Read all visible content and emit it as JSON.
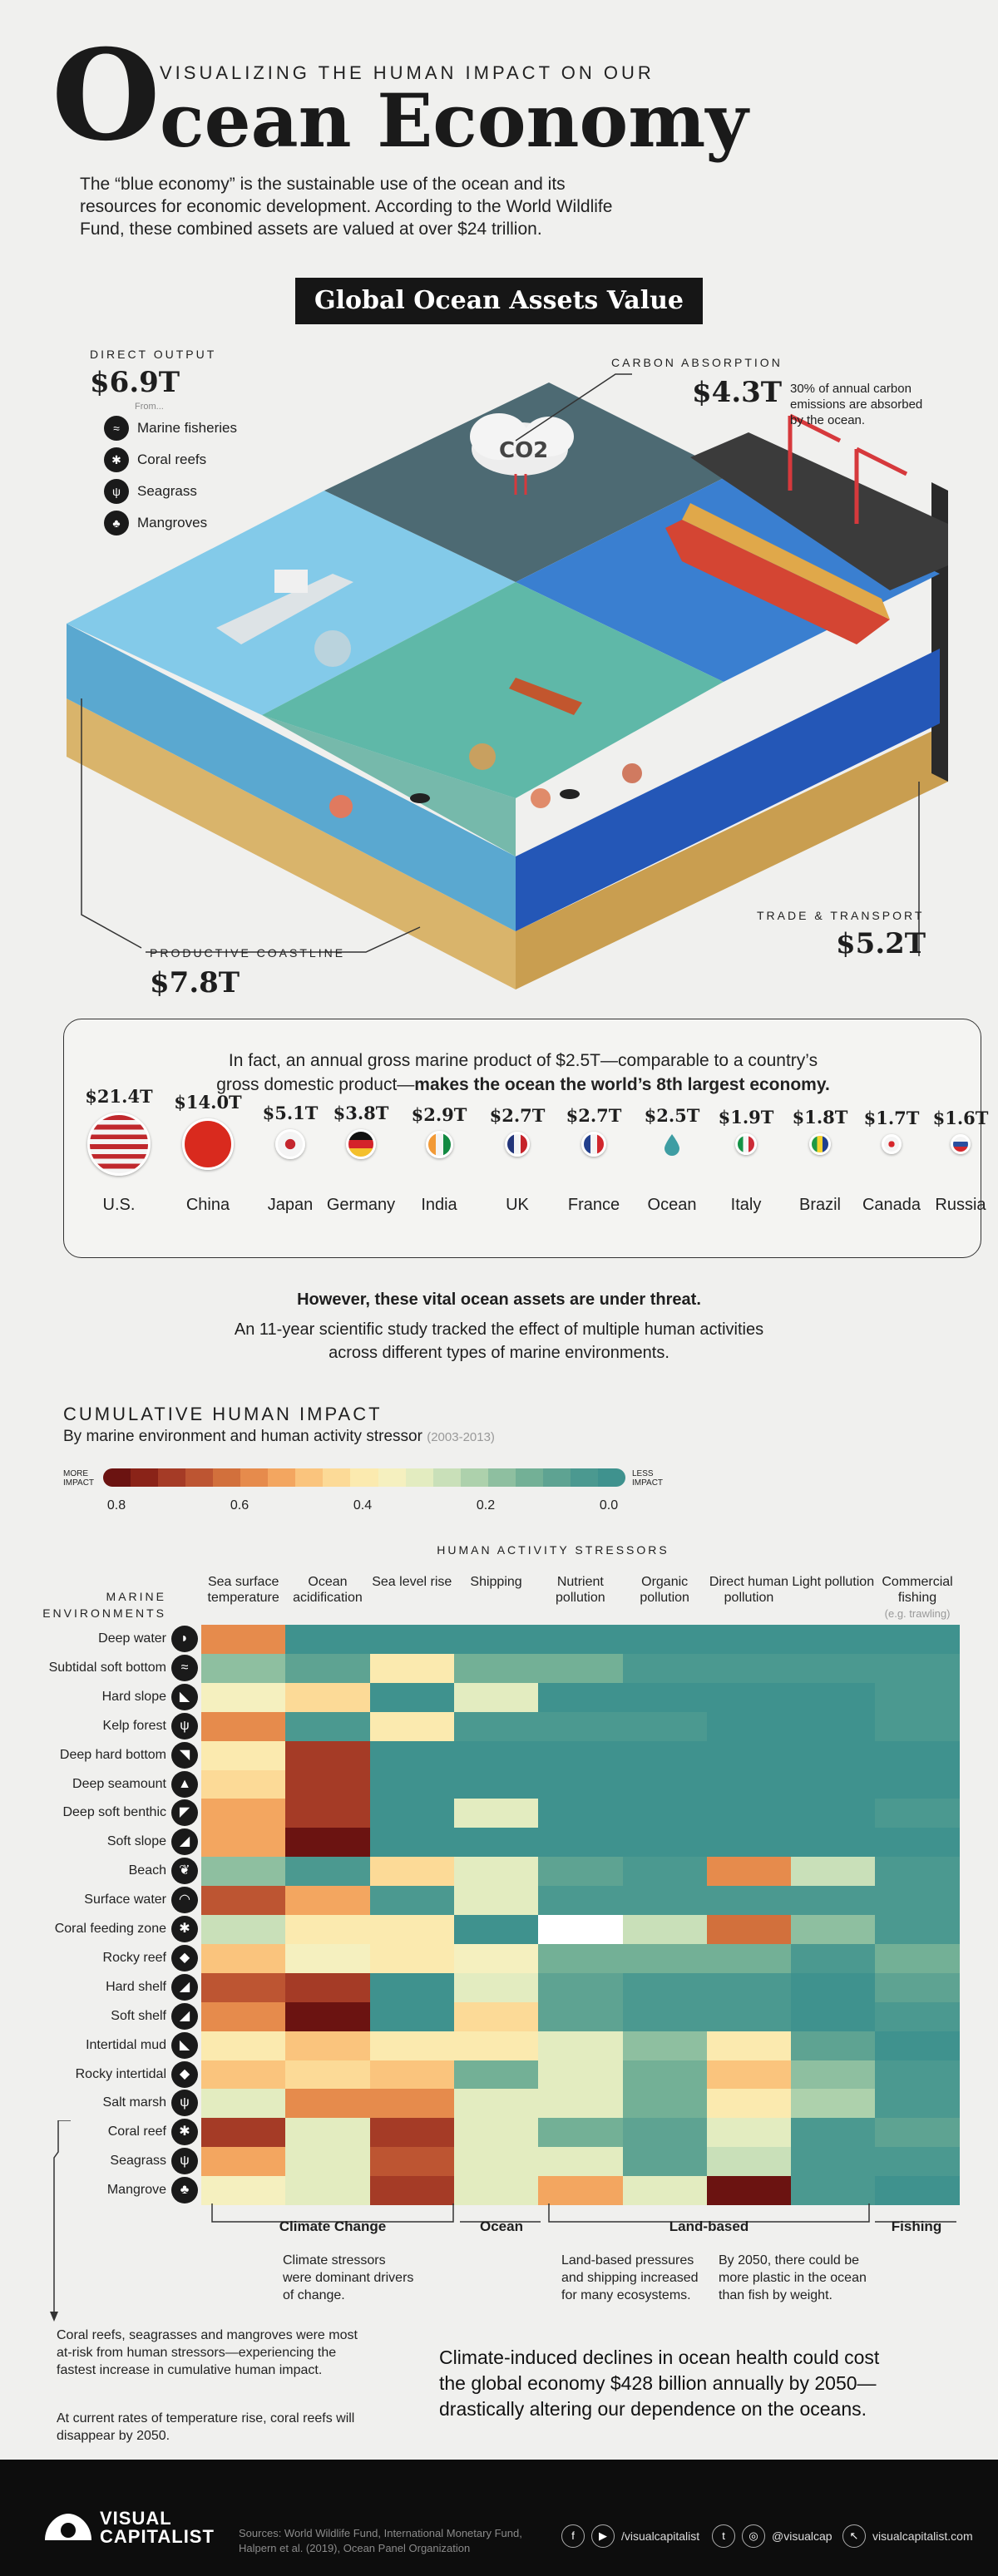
{
  "header": {
    "big_o": "O",
    "kicker": "VISUALIZING THE HUMAN IMPACT ON OUR",
    "title": "cean Economy",
    "intro": "The “blue economy” is the sustainable use of the ocean and its resources for economic development. According to the World Wildlife Fund, these combined assets are valued at over $24 trillion."
  },
  "assets": {
    "banner": "Global Ocean Assets Value",
    "direct_output": {
      "label": "DIRECT OUTPUT",
      "value": "$6.9T",
      "from": "From...",
      "items": [
        "Marine fisheries",
        "Coral reefs",
        "Seagrass",
        "Mangroves"
      ]
    },
    "carbon": {
      "label": "CARBON ABSORPTION",
      "value": "$4.3T",
      "note": "30% of annual carbon emissions are absorbed by the ocean.",
      "cloud_text": "CO2"
    },
    "coastline": {
      "label": "PRODUCTIVE COASTLINE",
      "value": "$7.8T"
    },
    "trade": {
      "label": "TRADE & TRANSPORT",
      "value": "$5.2T"
    },
    "colors": {
      "sea_light": "#7cc7e8",
      "sea_mid": "#3a8fc4",
      "sea_deep": "#2457b7",
      "sea_green": "#5fb8a8",
      "sand": "#d9b46b",
      "dark_water": "#4d6a73"
    }
  },
  "gdp": {
    "line1": "In fact, an annual gross marine product of $2.5T—comparable to a country’s",
    "line2_plain": "gross domestic product—",
    "line2_bold": "makes the ocean the world’s 8th largest economy.",
    "countries": [
      {
        "name": "U.S.",
        "value": "$21.4T"
      },
      {
        "name": "China",
        "value": "$14.0T"
      },
      {
        "name": "Japan",
        "value": "$5.1T"
      },
      {
        "name": "Germany",
        "value": "$3.8T"
      },
      {
        "name": "India",
        "value": "$2.9T"
      },
      {
        "name": "UK",
        "value": "$2.7T"
      },
      {
        "name": "France",
        "value": "$2.7T"
      },
      {
        "name": "Ocean",
        "value": "$2.5T"
      },
      {
        "name": "Italy",
        "value": "$1.9T"
      },
      {
        "name": "Brazil",
        "value": "$1.8T"
      },
      {
        "name": "Canada",
        "value": "$1.7T"
      },
      {
        "name": "Russia",
        "value": "$1.6T"
      }
    ]
  },
  "threat": {
    "title": "However, these vital ocean assets are under threat.",
    "sub": "An 11-year scientific study tracked the effect of multiple human activities across different types of marine environments."
  },
  "impact": {
    "title": "CUMULATIVE HUMAN IMPACT",
    "subtitle": "By marine environment and human activity stressor",
    "years": "(2003-2013)",
    "legend": {
      "more": "MORE IMPACT",
      "less": "LESS IMPACT",
      "ticks": [
        "0.8",
        "0.6",
        "0.4",
        "0.2",
        "0.0"
      ],
      "colors": [
        "#6b1311",
        "#8a2318",
        "#a53b26",
        "#bd5532",
        "#d2703c",
        "#e68b4c",
        "#f3a660",
        "#fac47d",
        "#fcda97",
        "#fbeaaf",
        "#f5f0bf",
        "#e3ecc0",
        "#c9e0b9",
        "#add1ac",
        "#8ebfa0",
        "#73b096",
        "#5ea392",
        "#4b9990",
        "#3f928e"
      ]
    }
  },
  "chart_data": {
    "type": "heatmap",
    "title": "CUMULATIVE HUMAN IMPACT",
    "subtitle": "By marine environment and human activity stressor",
    "xlabel": "HUMAN ACTIVITY STRESSORS",
    "ylabel": "MARINE ENVIRONMENTS",
    "columns": [
      {
        "label": "Sea surface temperature",
        "sub": ""
      },
      {
        "label": "Ocean acidification",
        "sub": ""
      },
      {
        "label": "Sea level rise",
        "sub": ""
      },
      {
        "label": "Shipping",
        "sub": ""
      },
      {
        "label": "Nutrient pollution",
        "sub": ""
      },
      {
        "label": "Organic pollution",
        "sub": ""
      },
      {
        "label": "Direct human pollution",
        "sub": ""
      },
      {
        "label": "Light pollution",
        "sub": ""
      },
      {
        "label": "Commercial fishing",
        "sub": "(e.g. trawling)"
      }
    ],
    "rows": [
      {
        "name": "Deep water",
        "icon": "deep-water-icon",
        "values": [
          0.6,
          0.02,
          0.02,
          0.02,
          0.02,
          0.02,
          0.02,
          0.02,
          0.02
        ]
      },
      {
        "name": "Subtidal soft bottom",
        "icon": "subtidal-soft-bottom-icon",
        "values": [
          0.18,
          0.1,
          0.4,
          0.12,
          0.14,
          0.04,
          0.03,
          0.04,
          0.04
        ]
      },
      {
        "name": "Hard slope",
        "icon": "hard-slope-icon",
        "values": [
          0.35,
          0.45,
          0.02,
          0.32,
          0.02,
          0.02,
          0.02,
          0.02,
          0.03
        ]
      },
      {
        "name": "Kelp forest",
        "icon": "kelp-forest-icon",
        "values": [
          0.58,
          0.04,
          0.38,
          0.03,
          0.05,
          0.04,
          0.02,
          0.02,
          0.04
        ]
      },
      {
        "name": "Deep hard bottom",
        "icon": "deep-hard-bottom-icon",
        "values": [
          0.38,
          0.72,
          0.02,
          0.02,
          0.02,
          0.02,
          0.02,
          0.02,
          0.02
        ]
      },
      {
        "name": "Deep seamount",
        "icon": "deep-seamount-icon",
        "values": [
          0.45,
          0.72,
          0.02,
          0.02,
          0.02,
          0.02,
          0.02,
          0.02,
          0.02
        ]
      },
      {
        "name": "Deep soft benthic",
        "icon": "deep-soft-benthic-icon",
        "values": [
          0.55,
          0.72,
          0.02,
          0.3,
          0.02,
          0.02,
          0.02,
          0.02,
          0.03
        ]
      },
      {
        "name": "Soft slope",
        "icon": "soft-slope-icon",
        "values": [
          0.55,
          0.82,
          0.02,
          0.02,
          0.02,
          0.02,
          0.02,
          0.02,
          0.02
        ]
      },
      {
        "name": "Beach",
        "icon": "beach-icon",
        "values": [
          0.18,
          0.04,
          0.45,
          0.3,
          0.08,
          0.04,
          0.58,
          0.25,
          0.04
        ]
      },
      {
        "name": "Surface water",
        "icon": "surface-water-icon",
        "values": [
          0.65,
          0.55,
          0.05,
          0.3,
          0.03,
          0.03,
          0.04,
          0.03,
          0.05
        ]
      },
      {
        "name": "Coral feeding zone",
        "icon": "coral-feeding-zone-icon",
        "values": [
          0.25,
          0.38,
          0.38,
          0.02,
          0.0,
          0.25,
          0.62,
          0.18,
          0.04
        ]
      },
      {
        "name": "Rocky reef",
        "icon": "rocky-reef-icon",
        "values": [
          0.5,
          0.35,
          0.4,
          0.35,
          0.15,
          0.12,
          0.15,
          0.03,
          0.12
        ]
      },
      {
        "name": "Hard shelf",
        "icon": "hard-shelf-icon",
        "values": [
          0.68,
          0.72,
          0.02,
          0.3,
          0.1,
          0.06,
          0.04,
          0.02,
          0.1
        ]
      },
      {
        "name": "Soft shelf",
        "icon": "soft-shelf-icon",
        "values": [
          0.6,
          0.78,
          0.02,
          0.45,
          0.1,
          0.05,
          0.05,
          0.02,
          0.05
        ]
      },
      {
        "name": "Intertidal mud",
        "icon": "intertidal-mud-icon",
        "values": [
          0.42,
          0.5,
          0.4,
          0.38,
          0.3,
          0.2,
          0.4,
          0.08,
          0.0
        ]
      },
      {
        "name": "Rocky intertidal",
        "icon": "rocky-intertidal-icon",
        "values": [
          0.48,
          0.45,
          0.5,
          0.12,
          0.3,
          0.15,
          0.5,
          0.2,
          0.04
        ]
      },
      {
        "name": "Salt marsh",
        "icon": "salt-marsh-icon",
        "values": [
          0.32,
          0.6,
          0.58,
          0.3,
          0.3,
          0.12,
          0.38,
          0.22,
          0.06
        ]
      },
      {
        "name": "Coral reef",
        "icon": "coral-reef-icon",
        "values": [
          0.7,
          0.3,
          0.7,
          0.3,
          0.12,
          0.1,
          0.3,
          0.05,
          0.1
        ]
      },
      {
        "name": "Seagrass",
        "icon": "seagrass-icon",
        "values": [
          0.55,
          0.3,
          0.68,
          0.3,
          0.32,
          0.08,
          0.25,
          0.05,
          0.03
        ]
      },
      {
        "name": "Mangrove",
        "icon": "mangrove-icon",
        "values": [
          0.36,
          0.3,
          0.7,
          0.32,
          0.55,
          0.32,
          0.82,
          0.05,
          0.0
        ]
      }
    ],
    "scale": [
      0.0,
      0.8
    ]
  },
  "groups": [
    {
      "label": "Climate Change",
      "note": "Climate stressors were dominant drivers of change."
    },
    {
      "label": "Ocean",
      "note": ""
    },
    {
      "label": "Land-based",
      "note": "Land-based pressures and shipping increased for many ecosystems."
    },
    {
      "label": "Fishing",
      "note": ""
    }
  ],
  "notes": {
    "plastic": "By 2050, there could be more plastic in the ocean than fish by weight.",
    "coral1": "Coral reefs, seagrasses and mangroves were most at-risk from human stressors—experiencing the fastest increase in cumulative human impact.",
    "coral2": "At current rates of temperature rise, coral reefs will disappear by 2050.",
    "closing": "Climate-induced declines in ocean health could cost the global economy $428 billion annually by 2050—drastically altering our dependence on the oceans."
  },
  "footer": {
    "brand1": "VISUAL",
    "brand2": "CAPITALIST",
    "sources": "Sources: World Wildlife Fund, International Monetary Fund, Halpern et al. (2019), Ocean Panel Organization",
    "handle1": "/visualcapitalist",
    "handle2": "@visualcap",
    "site": "visualcapitalist.com"
  }
}
